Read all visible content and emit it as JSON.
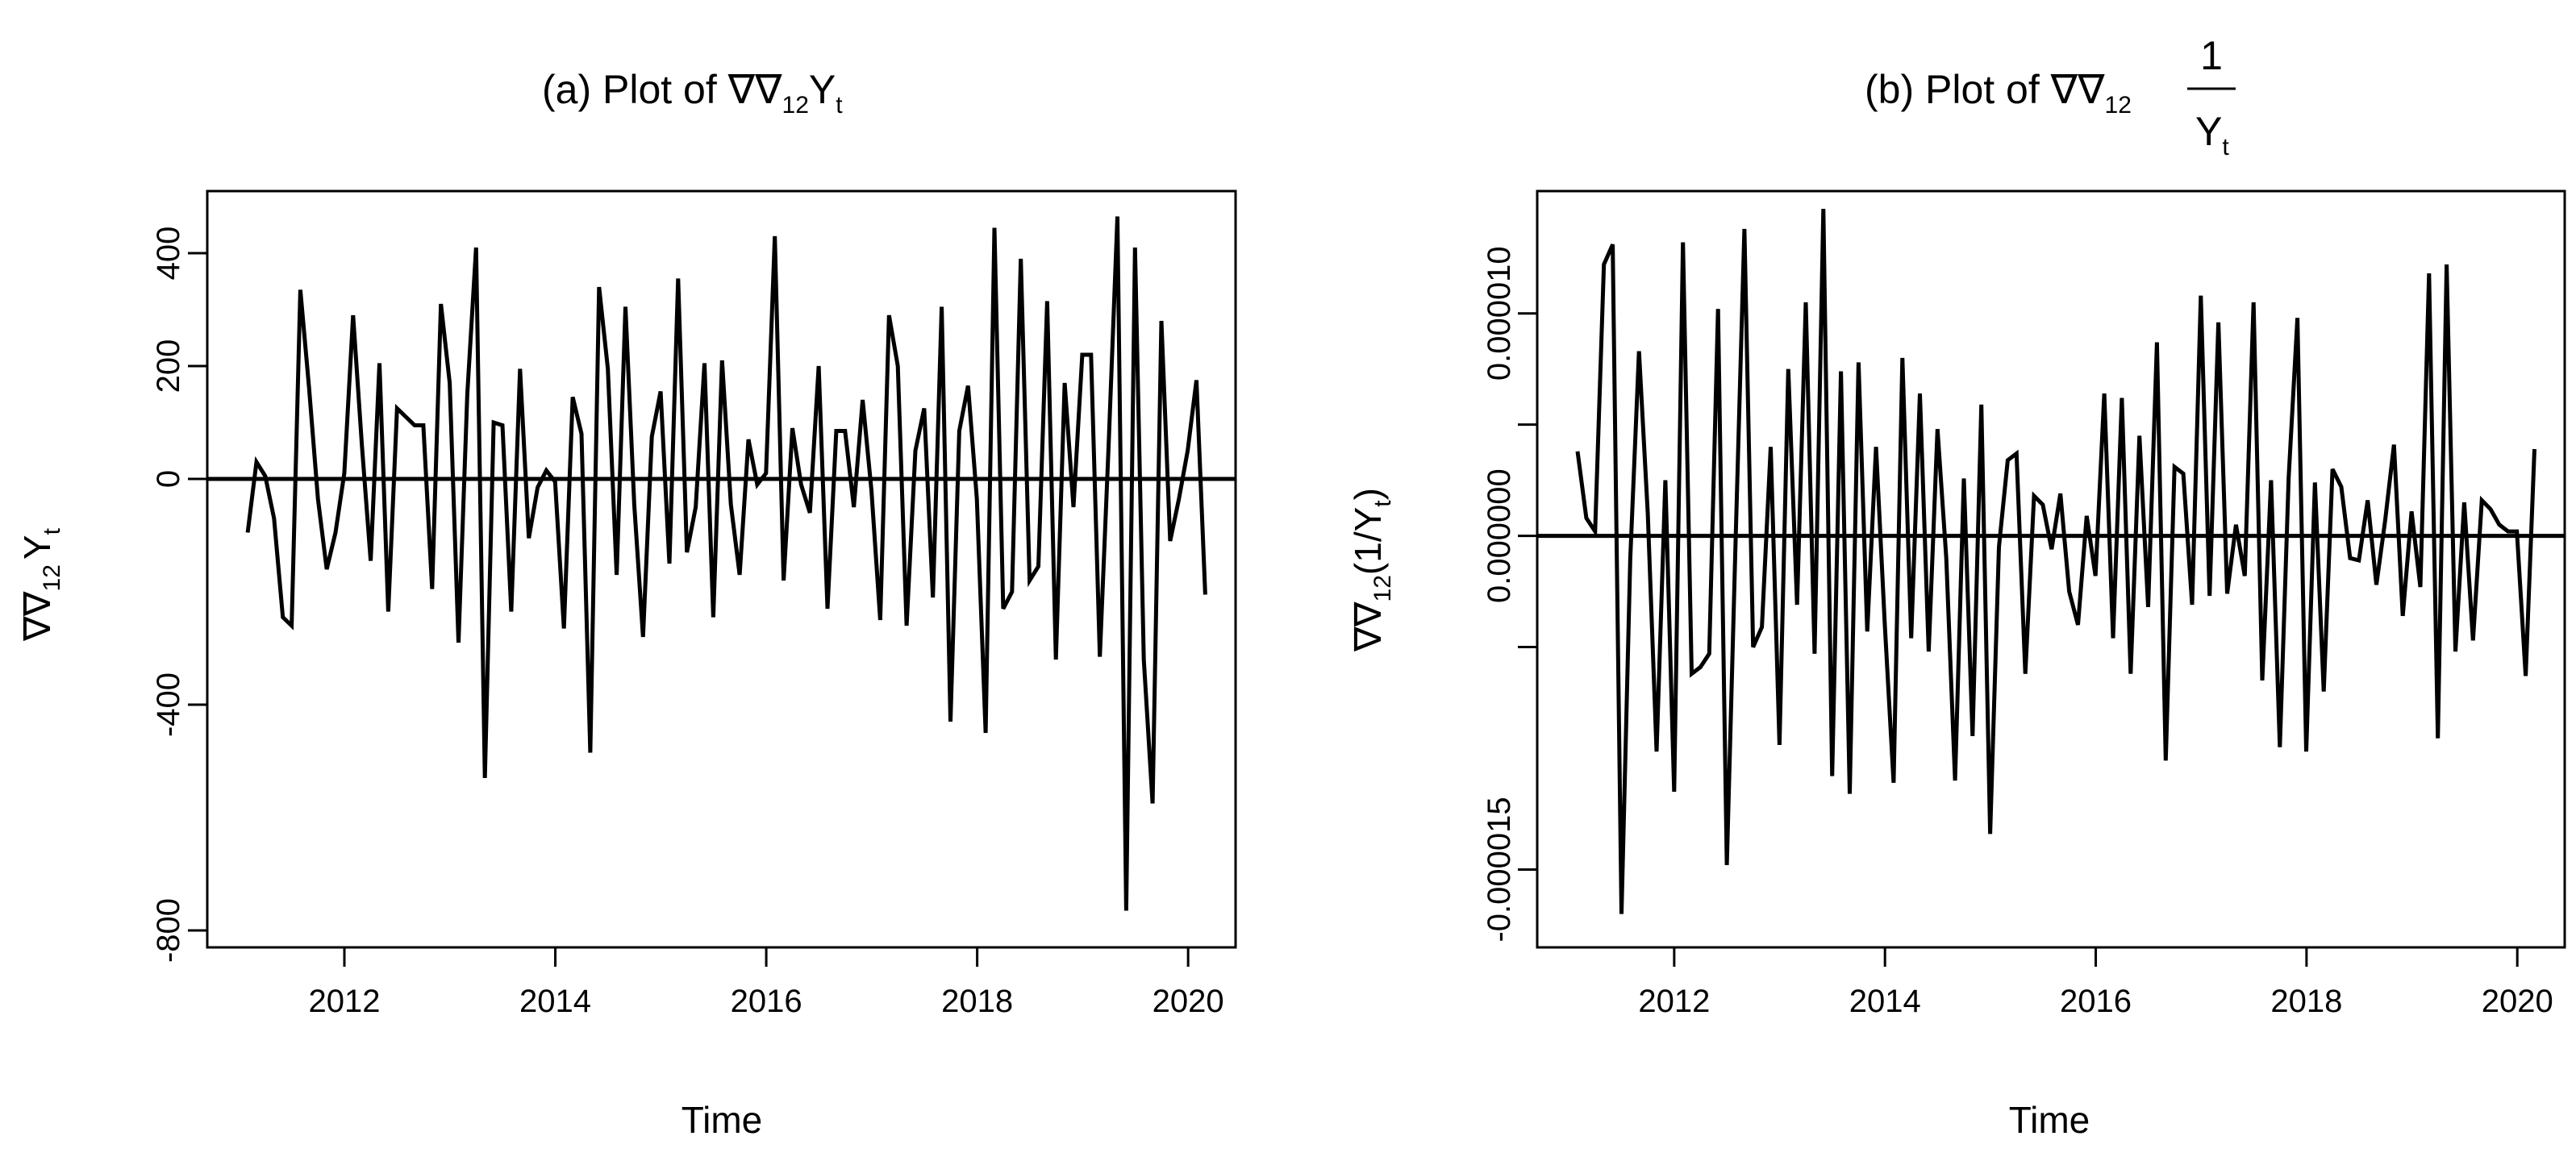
{
  "chart_data": [
    {
      "type": "line",
      "panel": "a",
      "title_prefix": "(a) Plot of ",
      "title_math": {
        "nabla": "∇∇",
        "sub": "12",
        "var": "Y",
        "var_sub": "t"
      },
      "xlabel": "Time",
      "ylabel_math": {
        "nabla": "∇∇",
        "sub": "12",
        "var": "Y",
        "var_sub": "t"
      },
      "x_ticks": [
        2012,
        2014,
        2016,
        2018,
        2020
      ],
      "x_tick_labels": [
        "2012",
        "2014",
        "2016",
        "2018",
        "2020"
      ],
      "y_ticks": [
        -800,
        -400,
        0,
        200,
        400
      ],
      "y_tick_labels": [
        "-800",
        "-400",
        "0",
        "200",
        "400"
      ],
      "xlim": [
        2010.7,
        2020.45
      ],
      "ylim": [
        -830,
        510
      ],
      "hline": 0,
      "series": [
        {
          "name": "∇∇12 Yt",
          "start": 2011.083,
          "step": 0.0833,
          "values": [
            -95,
            30,
            5,
            -70,
            -245,
            -260,
            335,
            160,
            -35,
            -160,
            -95,
            10,
            290,
            60,
            -145,
            205,
            -235,
            125,
            110,
            95,
            95,
            -195,
            310,
            170,
            -290,
            150,
            410,
            -530,
            100,
            95,
            -235,
            195,
            -105,
            -15,
            15,
            -5,
            -265,
            145,
            80,
            -485,
            340,
            195,
            -170,
            305,
            -45,
            -280,
            75,
            155,
            -150,
            355,
            -130,
            -50,
            205,
            -245,
            210,
            -45,
            -170,
            70,
            -10,
            10,
            430,
            -180,
            90,
            -10,
            -60,
            200,
            -230,
            85,
            85,
            -50,
            140,
            -20,
            -250,
            290,
            200,
            -260,
            50,
            125,
            -210,
            305,
            -430,
            85,
            165,
            -35,
            -450,
            445,
            -230,
            -200,
            390,
            -180,
            -155,
            315,
            -320,
            170,
            -50,
            220,
            220,
            -315,
            60,
            465,
            -765,
            410,
            -320,
            -575,
            280,
            -110,
            -35,
            50,
            175,
            -205
          ]
        }
      ]
    },
    {
      "type": "line",
      "panel": "b",
      "title_prefix": "(b) Plot of ",
      "title_math": {
        "nabla": "∇∇",
        "sub": "12",
        "frac_num": "1",
        "var": "Y",
        "var_sub": "t"
      },
      "xlabel": "Time",
      "ylabel_math": {
        "nabla": "∇∇",
        "sub": "12",
        "rest": "(1/Y",
        "var_sub": "t",
        "close": ")"
      },
      "x_ticks": [
        2012,
        2014,
        2016,
        2018,
        2020
      ],
      "x_tick_labels": [
        "2012",
        "2014",
        "2016",
        "2018",
        "2020"
      ],
      "y_ticks": [
        -1.5e-05,
        -5e-06,
        0,
        5e-06,
        1e-05
      ],
      "y_tick_labels": [
        "-0.000015",
        "",
        "0.000000",
        "",
        "0.000010"
      ],
      "xlim": [
        2010.7,
        2020.45
      ],
      "ylim": [
        -1.85e-05,
        1.55e-05
      ],
      "hline": 0,
      "series": [
        {
          "name": "∇∇12 (1/Yt)",
          "start": 2011.083,
          "step": 0.0833,
          "values": [
            3.8e-06,
            8e-07,
            2e-07,
            1.22e-05,
            1.31e-05,
            -1.7e-05,
            -1e-06,
            8.3e-06,
            1e-06,
            -9.7e-06,
            2.5e-06,
            -1.15e-05,
            1.32e-05,
            -6.2e-06,
            -5.9e-06,
            -5.3e-06,
            1.02e-05,
            -1.48e-05,
            -2e-07,
            1.38e-05,
            -5e-06,
            -4.1e-06,
            4e-06,
            -9.4e-06,
            7.5e-06,
            -3.1e-06,
            1.05e-05,
            -5.3e-06,
            1.47e-05,
            -1.08e-05,
            7.4e-06,
            -1.16e-05,
            7.8e-06,
            -4.3e-06,
            4e-06,
            -4e-06,
            -1.11e-05,
            8e-06,
            -4.6e-06,
            6.4e-06,
            -5.2e-06,
            4.8e-06,
            -1e-06,
            -1.1e-05,
            2.58e-06,
            -9e-06,
            5.9e-06,
            -1.34e-05,
            -5e-07,
            3.4e-06,
            3.7e-06,
            -6.2e-06,
            1.8e-06,
            1.4e-06,
            -6e-07,
            1.9e-06,
            -2.5e-06,
            -4e-06,
            9e-07,
            -1.8e-06,
            6.4e-06,
            -4.6e-06,
            6.2e-06,
            -6.2e-06,
            4.5e-06,
            -3.2e-06,
            8.7e-06,
            -1.01e-05,
            3.1e-06,
            2.8e-06,
            -3.1e-06,
            1.08e-05,
            -2.7e-06,
            9.6e-06,
            -2.6e-06,
            5e-07,
            -1.8e-06,
            1.05e-05,
            -6.5e-06,
            2.5e-06,
            -9.5e-06,
            2.6e-06,
            9.8e-06,
            -9.7e-06,
            2.4e-06,
            -7e-06,
            3e-06,
            2.2e-06,
            -1e-06,
            -1.1e-06,
            1.6e-06,
            -2.2e-06,
            7e-07,
            4.1e-06,
            -3.6e-06,
            1.1e-06,
            -2.3e-06,
            1.18e-05,
            -9.1e-06,
            1.22e-05,
            -5.2e-06,
            1.5e-06,
            -4.7e-06,
            1.6e-06,
            1.2e-06,
            5e-07,
            2e-07,
            2e-07,
            -6.3e-06,
            3.9e-06
          ]
        }
      ]
    }
  ]
}
